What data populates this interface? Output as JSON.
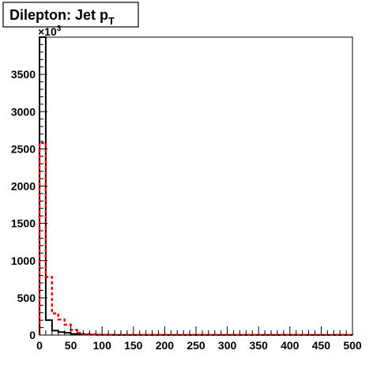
{
  "chart_data": {
    "type": "histogram",
    "title": "Dilepton: Jet p",
    "title_subscript": "T",
    "multiplier_label": "×10",
    "multiplier_exponent": "3",
    "xlabel": "",
    "ylabel": "",
    "xlim": [
      0,
      500
    ],
    "ylim": [
      0,
      4000
    ],
    "grid": false,
    "bin_width": 10,
    "x_ticks": [
      0,
      50,
      100,
      150,
      200,
      250,
      300,
      350,
      400,
      450,
      500
    ],
    "x_tick_labels": [
      "0",
      "50",
      "100",
      "150",
      "200",
      "250",
      "300",
      "350",
      "400",
      "450",
      "500"
    ],
    "y_ticks": [
      0,
      500,
      1000,
      1500,
      2000,
      2500,
      3000,
      3500
    ],
    "y_tick_labels": [
      "0",
      "500",
      "1000",
      "1500",
      "2000",
      "2500",
      "3000",
      "3500"
    ],
    "series": [
      {
        "color": "#000000",
        "style": "solid",
        "values": [
          4000,
          200,
          60,
          40,
          30,
          15,
          10,
          6,
          4,
          3,
          2,
          2,
          1,
          1,
          1,
          1,
          1,
          1,
          1,
          1,
          1,
          1,
          1,
          1,
          1,
          1,
          1,
          1,
          1,
          1,
          1,
          1,
          1,
          1,
          1,
          1,
          1,
          1,
          1,
          1,
          1,
          1,
          1,
          1,
          1,
          1,
          1,
          1,
          1,
          1
        ]
      },
      {
        "color": "#ff0000",
        "style": "dashed",
        "values": [
          2580,
          780,
          290,
          210,
          140,
          70,
          30,
          15,
          8,
          5,
          4,
          3,
          3,
          2,
          2,
          2,
          2,
          2,
          2,
          2,
          2,
          2,
          2,
          2,
          2,
          2,
          2,
          2,
          2,
          2,
          2,
          2,
          2,
          2,
          2,
          2,
          2,
          2,
          2,
          2,
          2,
          2,
          2,
          2,
          2,
          2,
          2,
          2,
          2,
          2
        ]
      }
    ]
  }
}
